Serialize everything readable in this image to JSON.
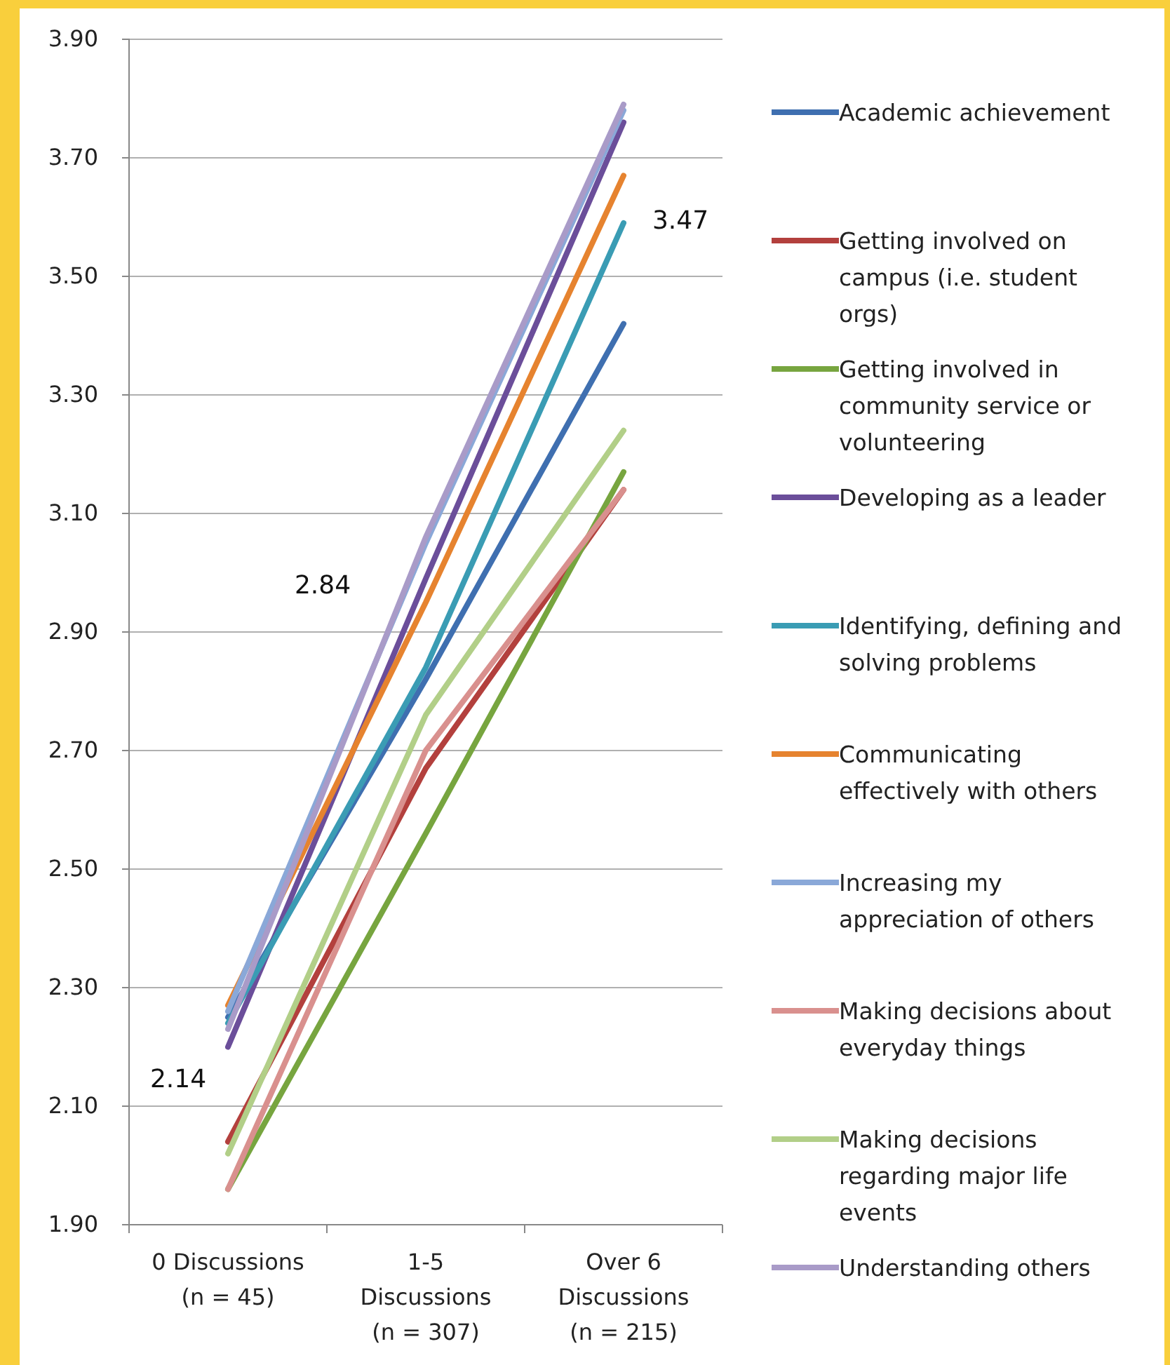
{
  "chart_data": {
    "type": "line",
    "categories": [
      "0 Discussions\n(n = 45)",
      "1-5\nDiscussions\n(n = 307)",
      "Over 6\nDiscussions\n(n = 215)"
    ],
    "series": [
      {
        "name": "Academic achievement",
        "color": "#3f6fb0",
        "values": [
          2.25,
          2.82,
          3.42
        ]
      },
      {
        "name": "Getting involved on campus (i.e. student orgs)",
        "color": "#b3403d",
        "values": [
          2.04,
          2.67,
          3.14
        ]
      },
      {
        "name": "Getting involved in community service or volunteering",
        "color": "#77a53f",
        "values": [
          1.96,
          2.56,
          3.17
        ]
      },
      {
        "name": "Developing as a leader",
        "color": "#6b4e9a",
        "values": [
          2.2,
          2.99,
          3.76
        ]
      },
      {
        "name": "Identifying, defining and solving problems",
        "color": "#3a9cb4",
        "values": [
          2.24,
          2.84,
          3.59
        ]
      },
      {
        "name": "Communicating effectively with others",
        "color": "#e6832f",
        "values": [
          2.27,
          2.95,
          3.67
        ]
      },
      {
        "name": "Increasing my appreciation of others",
        "color": "#8aa8d8",
        "values": [
          2.26,
          3.05,
          3.78
        ]
      },
      {
        "name": "Making decisions about everyday things",
        "color": "#d9908e",
        "values": [
          1.96,
          2.7,
          3.14
        ]
      },
      {
        "name": "Making decisions regarding major life events",
        "color": "#b2cf88",
        "values": [
          2.02,
          2.76,
          3.24
        ]
      },
      {
        "name": "Understanding others",
        "color": "#a99bc8",
        "values": [
          2.23,
          3.06,
          3.79
        ]
      }
    ],
    "ylim": [
      1.9,
      3.9
    ],
    "yticks": [
      {
        "value": 1.9,
        "label": "1.90"
      },
      {
        "value": 2.1,
        "label": "2.10"
      },
      {
        "value": 2.3,
        "label": "2.30"
      },
      {
        "value": 2.5,
        "label": "2.50"
      },
      {
        "value": 2.7,
        "label": "2.70"
      },
      {
        "value": 2.9,
        "label": "2.90"
      },
      {
        "value": 3.1,
        "label": "3.10"
      },
      {
        "value": 3.3,
        "label": "3.30"
      },
      {
        "value": 3.5,
        "label": "3.50"
      },
      {
        "value": 3.7,
        "label": "3.70"
      },
      {
        "value": 3.9,
        "label": "3.90"
      }
    ],
    "grid": "y",
    "legend": "right",
    "marker": "none",
    "line_style": "solid",
    "annotations": [
      "2.14",
      "2.84",
      "3.47"
    ]
  }
}
